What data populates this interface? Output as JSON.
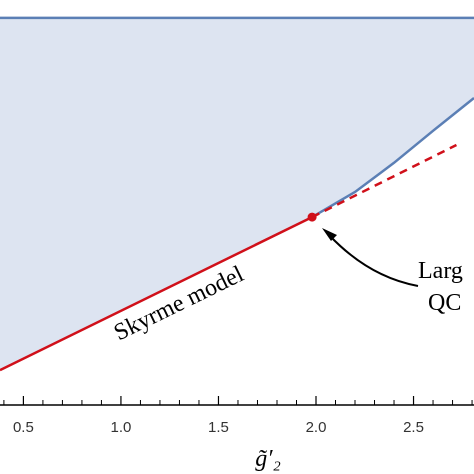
{
  "chart_data": {
    "type": "line",
    "x_label": "g̃′₂",
    "xlim": [
      0.38,
      2.81
    ],
    "ylim": [
      0,
      1
    ],
    "xticks": [
      0.5,
      {
        "value": 1,
        "label": "1.0"
      },
      1.5,
      {
        "value": 2,
        "label": "2.0"
      },
      2.5
    ],
    "xminorticks": [
      0.4,
      0.6,
      0.7,
      0.8,
      0.9,
      1.1,
      1.2,
      1.3,
      1.4,
      1.6,
      1.7,
      1.8,
      1.9,
      2.1,
      2.2,
      2.3,
      2.4,
      2.6,
      2.7,
      2.8
    ],
    "fill_color": "#dde4f1",
    "series": [
      {
        "name": "Skyrme model",
        "color": "#d0101a",
        "style": "solid",
        "x": [
          0.38,
          1.98
        ],
        "values": [
          0.086,
          0.464
        ]
      },
      {
        "color": "#5b7fb5",
        "style": "solid",
        "x": [
          1.98,
          2.2,
          2.4,
          2.6,
          2.81
        ],
        "values": [
          0.464,
          0.526,
          0.598,
          0.677,
          0.758
        ]
      },
      {
        "color": "#d0101a",
        "style": "dashed",
        "x": [
          1.98,
          2.72
        ],
        "values": [
          0.464,
          0.642
        ]
      },
      {
        "color": "#5b7fb5",
        "style": "solid",
        "x": [
          0.38,
          2.81
        ],
        "values": [
          0.956,
          0.956
        ]
      }
    ],
    "point": {
      "color": "#d0101a",
      "x": 1.98,
      "value": 0.464
    },
    "annotation": [
      "Larg",
      "QC"
    ]
  }
}
